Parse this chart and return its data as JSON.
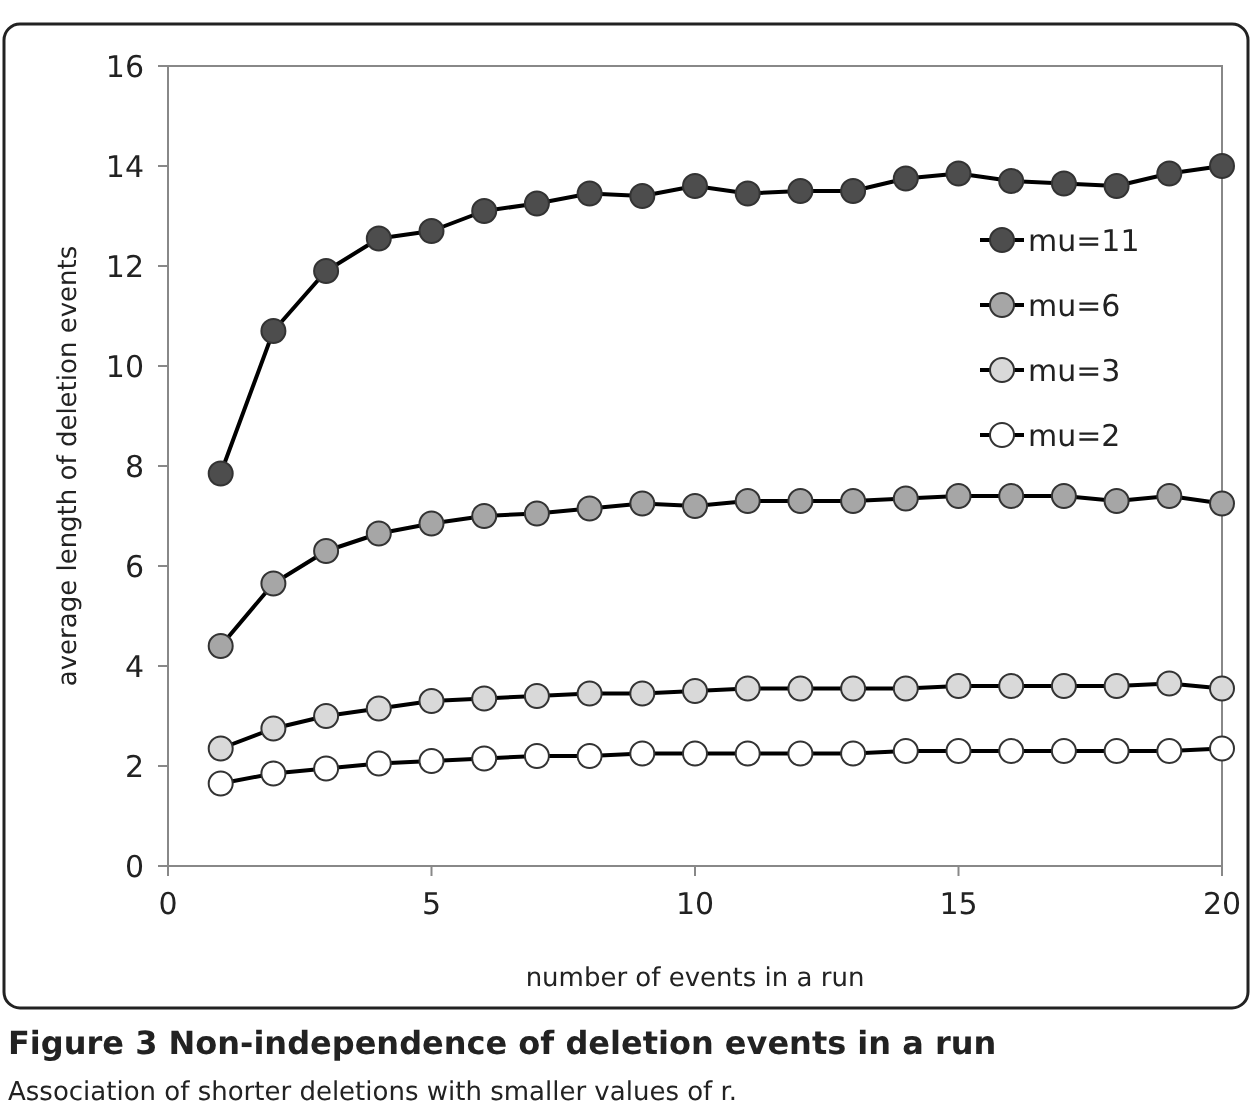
{
  "chart_data": {
    "type": "line",
    "title": "Figure 3 Non-independence of deletion events in a run",
    "subtitle": "Association of shorter deletions with smaller values of r.",
    "xlabel": "number of events in a run",
    "ylabel": "average length of deletion events",
    "x": [
      1,
      2,
      3,
      4,
      5,
      6,
      7,
      8,
      9,
      10,
      11,
      12,
      13,
      14,
      15,
      16,
      17,
      18,
      19,
      20
    ],
    "xlim": [
      0,
      20
    ],
    "xticks": [
      0,
      5,
      10,
      15,
      20
    ],
    "ylim": [
      0,
      16
    ],
    "yticks": [
      0,
      2,
      4,
      6,
      8,
      10,
      12,
      14,
      16
    ],
    "grid": false,
    "legend": "right",
    "marker": "circle",
    "line_style": "solid",
    "series": [
      {
        "name": "mu=11",
        "color": "#4d4d4d",
        "values": [
          7.85,
          10.7,
          11.9,
          12.55,
          12.7,
          13.1,
          13.25,
          13.45,
          13.4,
          13.6,
          13.45,
          13.5,
          13.5,
          13.75,
          13.85,
          13.7,
          13.65,
          13.6,
          13.85,
          14.0
        ]
      },
      {
        "name": "mu=6",
        "color": "#a6a6a6",
        "values": [
          4.4,
          5.65,
          6.3,
          6.65,
          6.85,
          7.0,
          7.05,
          7.15,
          7.25,
          7.2,
          7.3,
          7.3,
          7.3,
          7.35,
          7.4,
          7.4,
          7.4,
          7.3,
          7.4,
          7.25
        ]
      },
      {
        "name": "mu=3",
        "color": "#d9d9d9",
        "values": [
          2.35,
          2.75,
          3.0,
          3.15,
          3.3,
          3.35,
          3.4,
          3.45,
          3.45,
          3.5,
          3.55,
          3.55,
          3.55,
          3.55,
          3.6,
          3.6,
          3.6,
          3.6,
          3.65,
          3.55
        ]
      },
      {
        "name": "mu=2",
        "color": "#ffffff",
        "values": [
          1.65,
          1.85,
          1.95,
          2.05,
          2.1,
          2.15,
          2.2,
          2.2,
          2.25,
          2.25,
          2.25,
          2.25,
          2.25,
          2.3,
          2.3,
          2.3,
          2.3,
          2.3,
          2.3,
          2.35
        ]
      }
    ]
  }
}
